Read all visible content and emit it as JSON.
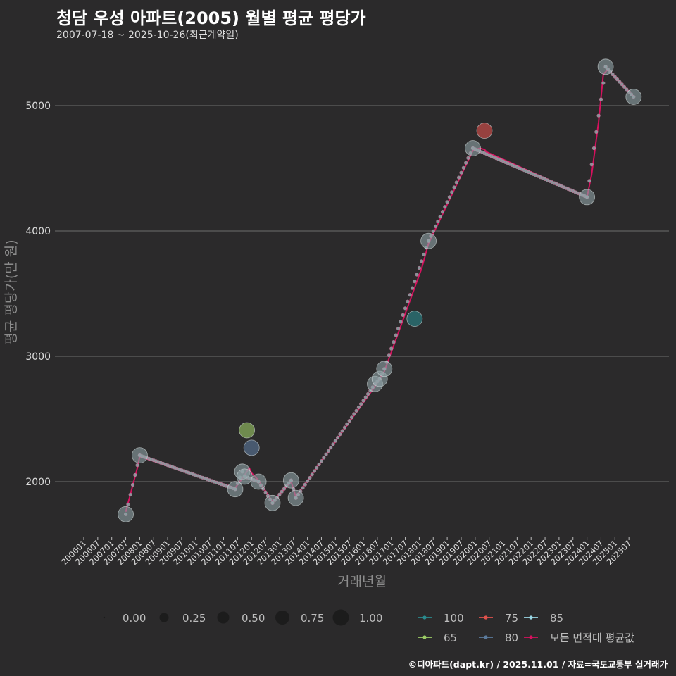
{
  "chart_data": {
    "type": "line",
    "title": "청담 우성 아파트(2005) 월별 평균 평당가",
    "subtitle": "2007-07-18 ~ 2025-10-26(최근계약일)",
    "xlabel": "거래년월",
    "ylabel": "평균 평당가(만 원)",
    "x_ticks": [
      "200601",
      "200607",
      "200701",
      "200707",
      "200801",
      "200807",
      "200901",
      "200907",
      "201001",
      "201007",
      "201101",
      "201107",
      "201201",
      "201207",
      "201301",
      "201307",
      "201401",
      "201407",
      "201501",
      "201507",
      "201601",
      "201607",
      "201701",
      "201707",
      "201801",
      "201807",
      "201901",
      "201907",
      "202001",
      "202007",
      "202101",
      "202107",
      "202201",
      "202207",
      "202301",
      "202307",
      "202401",
      "202407",
      "202501",
      "202507"
    ],
    "y_ticks": [
      2000,
      3000,
      4000,
      5000
    ],
    "ylim": [
      1550,
      5400
    ],
    "size_legend": [
      "0.00",
      "0.25",
      "0.50",
      "0.75",
      "1.00"
    ],
    "colors": {
      "100": "#2a8a8e",
      "75": "#e0524c",
      "85": "#9ad8e6",
      "65": "#9ccc65",
      "80": "#5b7a9c",
      "avg": "#d6115e",
      "dots": "#8fa0a6"
    },
    "legend_series": [
      {
        "key": "100",
        "label": "100"
      },
      {
        "key": "75",
        "label": "75"
      },
      {
        "key": "85",
        "label": "85"
      },
      {
        "key": "65",
        "label": "65"
      },
      {
        "key": "80",
        "label": "80"
      },
      {
        "key": "avg",
        "label": "모든 면적대 평균값"
      }
    ],
    "points": [
      {
        "x": "2007-07",
        "y": 1740,
        "series": "85",
        "size": 0.5
      },
      {
        "x": "2008-01",
        "y": 2210,
        "series": "85",
        "size": 0.5
      },
      {
        "x": "2011-06",
        "y": 1940,
        "series": "85",
        "size": 0.5
      },
      {
        "x": "2011-09",
        "y": 2080,
        "series": "85",
        "size": 0.5
      },
      {
        "x": "2011-10",
        "y": 2040,
        "series": "85",
        "size": 0.5
      },
      {
        "x": "2011-11",
        "y": 2410,
        "series": "65",
        "size": 0.5
      },
      {
        "x": "2012-01",
        "y": 2270,
        "series": "80",
        "size": 0.5
      },
      {
        "x": "2012-04",
        "y": 2000,
        "series": "85",
        "size": 0.5
      },
      {
        "x": "2012-10",
        "y": 1830,
        "series": "85",
        "size": 0.5
      },
      {
        "x": "2013-06",
        "y": 2010,
        "series": "85",
        "size": 0.5
      },
      {
        "x": "2013-08",
        "y": 1870,
        "series": "85",
        "size": 0.5
      },
      {
        "x": "2016-06",
        "y": 2780,
        "series": "85",
        "size": 0.5
      },
      {
        "x": "2016-08",
        "y": 2820,
        "series": "85",
        "size": 0.5
      },
      {
        "x": "2016-10",
        "y": 2900,
        "series": "85",
        "size": 0.5
      },
      {
        "x": "2017-11",
        "y": 3300,
        "series": "100",
        "size": 0.5
      },
      {
        "x": "2018-05",
        "y": 3920,
        "series": "85",
        "size": 0.5
      },
      {
        "x": "2019-12",
        "y": 4660,
        "series": "85",
        "size": 0.5
      },
      {
        "x": "2020-05",
        "y": 4800,
        "series": "75",
        "size": 0.5
      },
      {
        "x": "2024-01",
        "y": 4270,
        "series": "85",
        "size": 0.5
      },
      {
        "x": "2024-09",
        "y": 5310,
        "series": "85",
        "size": 0.5
      },
      {
        "x": "2025-09",
        "y": 5070,
        "series": "85",
        "size": 0.5
      }
    ],
    "avg_line": [
      [
        "2007-07",
        1760
      ],
      [
        "2007-12",
        2110
      ],
      [
        "2008-01",
        2200
      ],
      [
        "2011-06",
        1950
      ],
      [
        "2011-10",
        2050
      ],
      [
        "2011-12",
        2110
      ],
      [
        "2012-01",
        2070
      ],
      [
        "2012-04",
        2010
      ],
      [
        "2012-10",
        1840
      ],
      [
        "2013-06",
        2000
      ],
      [
        "2013-08",
        1880
      ],
      [
        "2016-06",
        2760
      ],
      [
        "2016-10",
        2880
      ],
      [
        "2018-02",
        3700
      ],
      [
        "2018-05",
        3900
      ],
      [
        "2019-12",
        4640
      ],
      [
        "2020-03",
        4660
      ],
      [
        "2020-05",
        4650
      ],
      [
        "2020-06",
        4630
      ],
      [
        "2024-01",
        4270
      ],
      [
        "2024-03",
        4450
      ],
      [
        "2024-06",
        4870
      ],
      [
        "2024-08",
        5250
      ],
      [
        "2024-10",
        5290
      ],
      [
        "2025-09",
        5070
      ]
    ],
    "series_85_line": [
      [
        "2007-07",
        1740
      ],
      [
        "2008-01",
        2210
      ],
      [
        "2011-06",
        1940
      ],
      [
        "2011-09",
        2080
      ],
      [
        "2011-10",
        2040
      ],
      [
        "2012-04",
        2000
      ],
      [
        "2012-10",
        1830
      ],
      [
        "2013-06",
        2010
      ],
      [
        "2013-08",
        1870
      ],
      [
        "2016-06",
        2780
      ],
      [
        "2016-08",
        2820
      ],
      [
        "2016-10",
        2900
      ],
      [
        "2018-05",
        3920
      ],
      [
        "2019-12",
        4660
      ],
      [
        "2024-01",
        4270
      ],
      [
        "2024-09",
        5310
      ],
      [
        "2025-09",
        5070
      ]
    ]
  },
  "footer": "©디아파트(dapt.kr) / 2025.11.01 / 자료=국토교통부 실거래가"
}
